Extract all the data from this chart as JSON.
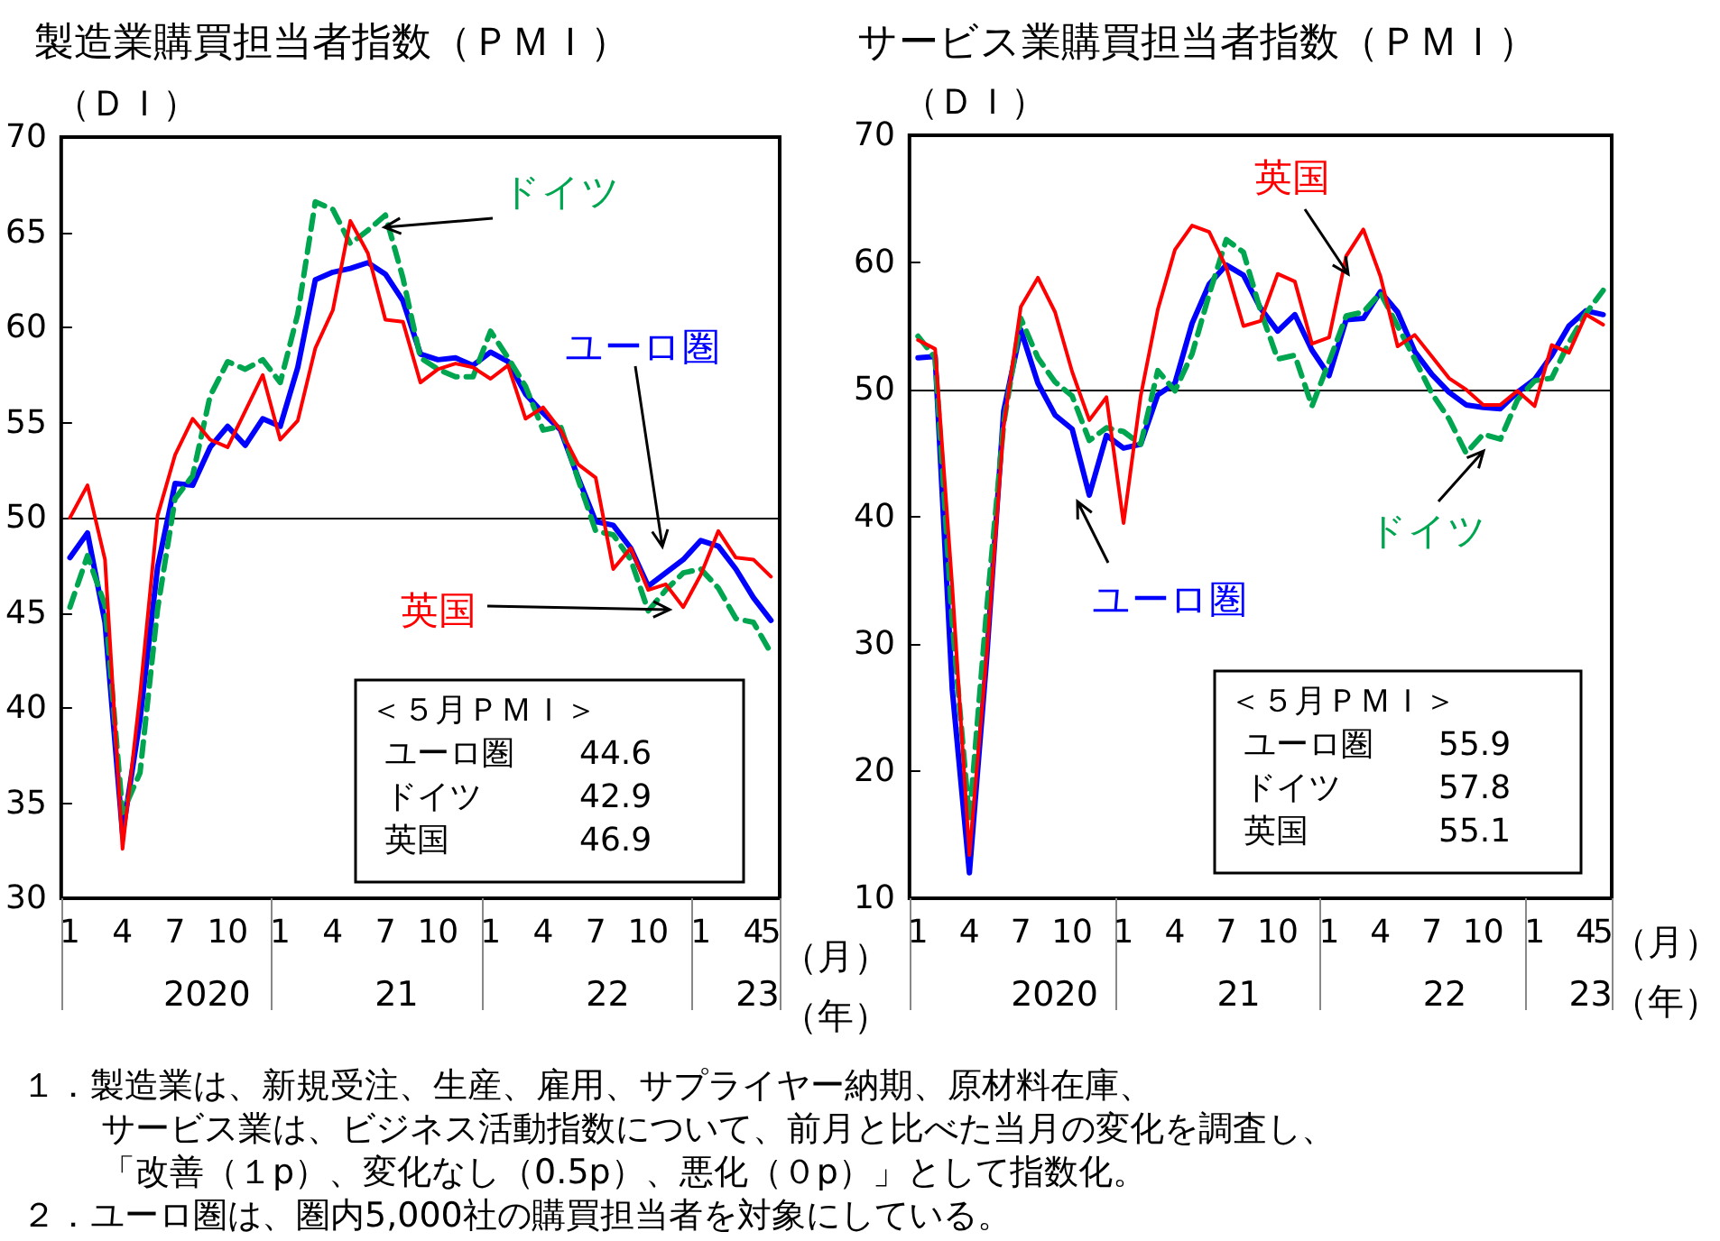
{
  "chart_data": [
    {
      "type": "line",
      "title": "製造業購買担当者指数（ＰＭＩ）",
      "ylabel": "（ＤＩ）",
      "xlabel": "（月）",
      "categories": [
        "1",
        null,
        null,
        "4",
        null,
        null,
        "7",
        null,
        null,
        "10",
        null,
        null,
        "1",
        null,
        null,
        "4",
        null,
        null,
        "7",
        null,
        null,
        "10",
        null,
        null,
        "1",
        null,
        null,
        "4",
        null,
        null,
        "7",
        null,
        null,
        "10",
        null,
        null,
        "1",
        null,
        null,
        "4",
        "5"
      ],
      "series": [
        {
          "name": "ユーロ圏",
          "color": "#0000ff",
          "values": [
            47.9,
            49.2,
            44.5,
            33.4,
            39.4,
            47.4,
            51.8,
            51.7,
            53.7,
            54.8,
            53.8,
            55.2,
            54.8,
            57.9,
            62.5,
            62.9,
            63.1,
            63.4,
            62.8,
            61.4,
            58.6,
            58.3,
            58.4,
            58.0,
            58.7,
            58.2,
            56.5,
            55.5,
            54.6,
            52.1,
            49.8,
            49.6,
            48.4,
            46.4,
            47.1,
            47.8,
            48.8,
            48.5,
            47.3,
            45.8,
            44.6
          ]
        },
        {
          "name": "ドイツ",
          "color": "#00a550",
          "line_style": "dashed",
          "values": [
            45.3,
            48.0,
            45.4,
            34.5,
            36.6,
            45.2,
            51.0,
            52.2,
            56.4,
            58.2,
            57.8,
            58.3,
            57.1,
            60.7,
            66.6,
            66.2,
            64.4,
            65.1,
            65.9,
            62.6,
            58.4,
            57.8,
            57.4,
            57.4,
            59.8,
            58.4,
            56.9,
            54.6,
            54.8,
            52.0,
            49.3,
            49.1,
            47.8,
            45.1,
            46.2,
            47.1,
            47.3,
            46.3,
            44.7,
            44.5,
            42.9
          ]
        },
        {
          "name": "英国",
          "color": "#ff0000",
          "values": [
            50.0,
            51.7,
            47.8,
            32.6,
            40.7,
            50.1,
            53.3,
            55.2,
            54.1,
            53.7,
            55.6,
            57.5,
            54.1,
            55.1,
            58.9,
            60.9,
            65.6,
            63.9,
            60.4,
            60.3,
            57.1,
            57.8,
            58.1,
            57.9,
            57.3,
            58.0,
            55.2,
            55.8,
            54.6,
            52.8,
            52.1,
            47.3,
            48.4,
            46.2,
            46.5,
            45.3,
            47.0,
            49.3,
            47.9,
            47.8,
            46.9
          ]
        }
      ],
      "ylim": [
        30,
        70
      ],
      "yticks": [
        30,
        35,
        40,
        45,
        50,
        55,
        60,
        65,
        70
      ],
      "marker": "none",
      "legend": false,
      "grid": false,
      "ref_lines": [
        {
          "axis": "y",
          "value": 50,
          "color": "#000000"
        }
      ],
      "annotations": [
        "2020",
        "21",
        "22",
        "23",
        "（年）",
        "＜５月ＰＭＩ＞",
        "ユーロ圏　　44.6",
        "ドイツ　　　42.9",
        "英国　　　　46.9",
        "１．製造業は、新規受注、生産、雇用、サプライヤー納期、原材料在庫、",
        "サービス業は、ビジネス活動指数について、前月と比べた当月の変化を調査し、",
        "「改善（１p）、変化なし（0.5p）、悪化（０p）」として指数化。",
        "２．ユーロ圏は、圏内5,000社の購買担当者を対象にしている。"
      ]
    },
    {
      "type": "line",
      "title": "サービス業購買担当者指数（ＰＭＩ）",
      "ylabel": "（ＤＩ）",
      "xlabel": "（月）",
      "categories": [
        "1",
        null,
        null,
        "4",
        null,
        null,
        "7",
        null,
        null,
        "10",
        null,
        null,
        "1",
        null,
        null,
        "4",
        null,
        null,
        "7",
        null,
        null,
        "10",
        null,
        null,
        "1",
        null,
        null,
        "4",
        null,
        null,
        "7",
        null,
        null,
        "10",
        null,
        null,
        "1",
        null,
        null,
        "4",
        "5"
      ],
      "series": [
        {
          "name": "ユーロ圏",
          "color": "#0000ff",
          "values": [
            52.5,
            52.6,
            26.4,
            12.0,
            28.7,
            48.3,
            54.7,
            50.5,
            48.0,
            46.9,
            41.7,
            46.4,
            45.4,
            45.7,
            49.6,
            50.5,
            55.2,
            58.3,
            59.8,
            59.0,
            56.4,
            54.6,
            55.9,
            53.1,
            51.1,
            55.5,
            55.6,
            57.7,
            56.1,
            53.0,
            51.2,
            49.8,
            48.8,
            48.6,
            48.5,
            49.8,
            50.8,
            52.7,
            55.0,
            56.2,
            55.9
          ]
        },
        {
          "name": "ドイツ",
          "color": "#00a550",
          "line_style": "dashed",
          "values": [
            54.2,
            52.5,
            31.7,
            16.2,
            32.6,
            47.3,
            55.6,
            52.5,
            50.6,
            49.5,
            46.0,
            47.0,
            46.7,
            45.7,
            51.5,
            49.9,
            52.8,
            57.5,
            61.8,
            60.8,
            56.2,
            52.4,
            52.7,
            48.7,
            52.2,
            55.8,
            56.1,
            57.6,
            55.0,
            52.4,
            49.7,
            47.7,
            45.0,
            46.5,
            46.1,
            49.2,
            50.7,
            50.9,
            53.7,
            56.0,
            57.8
          ]
        },
        {
          "name": "英国",
          "color": "#ff0000",
          "values": [
            53.9,
            53.2,
            34.5,
            13.4,
            29.0,
            47.1,
            56.5,
            58.8,
            56.1,
            51.4,
            47.6,
            49.4,
            39.5,
            49.5,
            56.3,
            61.0,
            62.9,
            62.4,
            59.6,
            55.0,
            55.4,
            59.1,
            58.5,
            53.6,
            54.1,
            60.5,
            62.6,
            58.9,
            53.4,
            54.3,
            52.6,
            50.9,
            50.0,
            48.8,
            48.8,
            49.9,
            48.7,
            53.5,
            52.9,
            55.9,
            55.1
          ]
        }
      ],
      "ylim": [
        10,
        70
      ],
      "yticks": [
        10,
        20,
        30,
        40,
        50,
        60,
        70
      ],
      "marker": "none",
      "legend": false,
      "grid": false,
      "ref_lines": [
        {
          "axis": "y",
          "value": 50,
          "color": "#000000"
        }
      ],
      "annotations": [
        "2020",
        "21",
        "22",
        "23",
        "（年）",
        "＜５月ＰＭＩ＞",
        "ユーロ圏　　55.9",
        "ドイツ　　　57.8",
        "英国　　　　55.1"
      ]
    }
  ]
}
